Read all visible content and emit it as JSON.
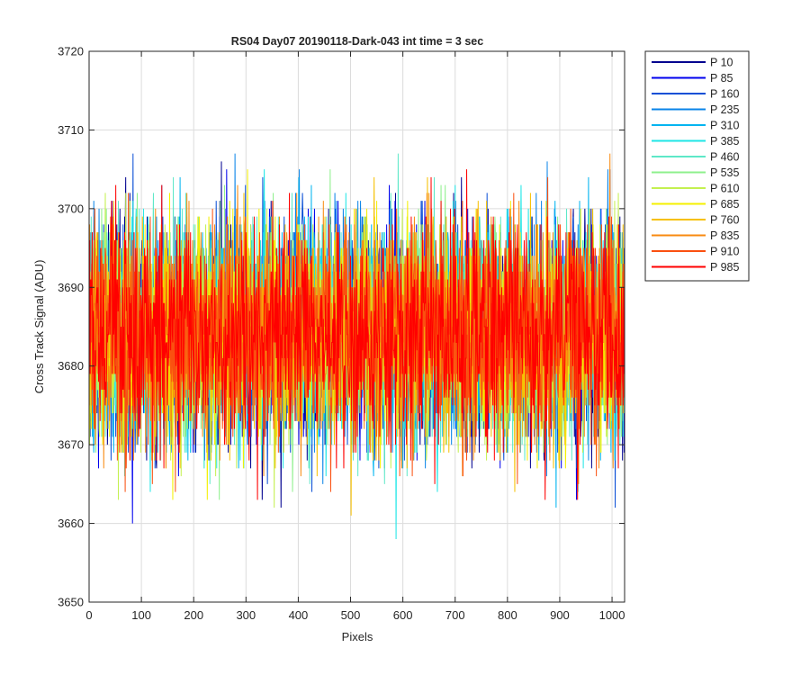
{
  "chart_data": {
    "type": "line",
    "title": "RS04 Day07 20190118-Dark-043 int time = 3 sec",
    "xlabel": "Pixels",
    "ylabel": "Cross Track Signal (ADU)",
    "xlim": [
      0,
      1024
    ],
    "ylim": [
      3650,
      3720
    ],
    "x_ticks": [
      0,
      100,
      200,
      300,
      400,
      500,
      600,
      700,
      800,
      900,
      1000
    ],
    "y_ticks": [
      3650,
      3660,
      3670,
      3680,
      3690,
      3700,
      3710,
      3720
    ],
    "grid": true,
    "legend_position": "outside-top-right",
    "series_mean": 3684,
    "series_spread": 7,
    "n_points": 1024,
    "series": [
      {
        "name": "P 10",
        "color": "#00008f"
      },
      {
        "name": "P 85",
        "color": "#0000ee"
      },
      {
        "name": "P 160",
        "color": "#0a4fd6"
      },
      {
        "name": "P 235",
        "color": "#0a84e8"
      },
      {
        "name": "P 310",
        "color": "#00b4f0"
      },
      {
        "name": "P 385",
        "color": "#1ee6e6"
      },
      {
        "name": "P 460",
        "color": "#5ee8c8"
      },
      {
        "name": "P 535",
        "color": "#8ef08c"
      },
      {
        "name": "P 610",
        "color": "#c4f050"
      },
      {
        "name": "P 685",
        "color": "#f4f000"
      },
      {
        "name": "P 760",
        "color": "#f6c000"
      },
      {
        "name": "P 835",
        "color": "#f88a10"
      },
      {
        "name": "P 910",
        "color": "#fa5010"
      },
      {
        "name": "P 985",
        "color": "#ff0000"
      }
    ]
  }
}
